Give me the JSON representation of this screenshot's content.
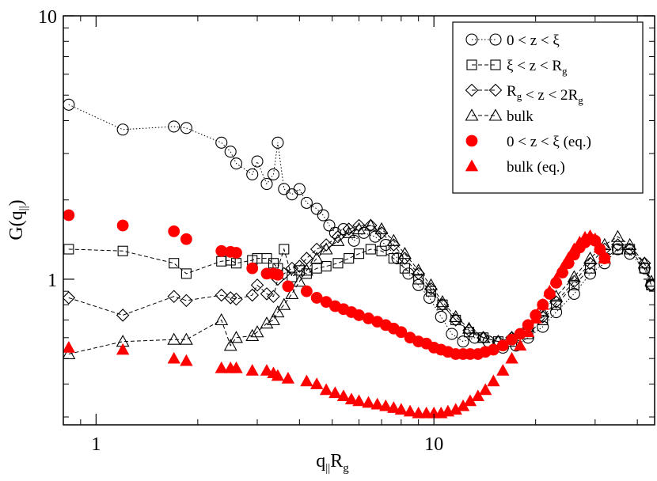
{
  "chart_data": {
    "type": "scatter",
    "xscale": "log",
    "yscale": "log",
    "xlim": [
      0.8,
      45
    ],
    "ylim": [
      0.28,
      10
    ],
    "x_ticks": [
      1,
      10
    ],
    "y_ticks": [
      1,
      10
    ],
    "legend_position": "top-right",
    "grid": false,
    "colors": {
      "black": "#000000",
      "red": "#ff0000"
    },
    "series": [
      {
        "name": "0 < z < ξ",
        "marker": "circle-open",
        "line": "dotted",
        "color": "#000000",
        "x": [
          0.83,
          1.2,
          1.7,
          1.85,
          2.35,
          2.5,
          2.6,
          2.9,
          3.0,
          3.2,
          3.35,
          3.45,
          3.6,
          3.8,
          4.0,
          4.2,
          4.5,
          4.7,
          4.9,
          5.1,
          5.4,
          5.8,
          6.2,
          6.7,
          7.2,
          7.8,
          8.4,
          9.0,
          9.7,
          10.5,
          11.3,
          12.2,
          13.2,
          14.5,
          16,
          17.5,
          19,
          21,
          23,
          26,
          29,
          32,
          35,
          38,
          42,
          44
        ],
        "y": [
          4.6,
          3.7,
          3.8,
          3.75,
          3.3,
          3.05,
          2.75,
          2.5,
          2.8,
          2.3,
          2.5,
          3.3,
          2.2,
          2.1,
          2.2,
          1.95,
          1.85,
          1.75,
          1.6,
          1.5,
          1.55,
          1.4,
          1.5,
          1.45,
          1.35,
          1.2,
          1.05,
          0.95,
          0.85,
          0.72,
          0.62,
          0.58,
          0.6,
          0.58,
          0.55,
          0.56,
          0.6,
          0.66,
          0.75,
          0.88,
          1.05,
          1.15,
          1.3,
          1.25,
          1.1,
          0.95
        ]
      },
      {
        "name": "ξ < z < R_g",
        "marker": "square-open",
        "line": "dashed",
        "color": "#000000",
        "x": [
          0.83,
          1.2,
          1.7,
          1.85,
          2.35,
          2.5,
          2.6,
          2.9,
          3.0,
          3.2,
          3.35,
          3.45,
          3.6,
          3.8,
          4.0,
          4.2,
          4.5,
          4.8,
          5.2,
          5.6,
          6.0,
          6.5,
          7.0,
          7.6,
          8.2,
          9.0,
          9.8,
          10.6,
          11.6,
          12.7,
          14,
          15.5,
          17,
          19,
          21,
          23,
          26,
          29,
          32,
          35,
          38,
          42,
          44
        ],
        "y": [
          1.3,
          1.28,
          1.15,
          1.05,
          1.17,
          1.18,
          1.15,
          1.18,
          1.2,
          1.2,
          1.15,
          1.1,
          1.3,
          1.02,
          1.08,
          1.05,
          1.1,
          1.12,
          1.15,
          1.2,
          1.25,
          1.3,
          1.28,
          1.2,
          1.1,
          1.0,
          0.9,
          0.8,
          0.7,
          0.63,
          0.6,
          0.58,
          0.58,
          0.62,
          0.7,
          0.8,
          0.95,
          1.1,
          1.2,
          1.3,
          1.3,
          1.1,
          0.95
        ]
      },
      {
        "name": "R_g < z < 2R_g",
        "marker": "diamond-open",
        "line": "dashed",
        "color": "#000000",
        "x": [
          0.83,
          1.2,
          1.7,
          1.85,
          2.35,
          2.5,
          2.6,
          2.9,
          3.0,
          3.2,
          3.35,
          3.45,
          3.6,
          3.8,
          4.0,
          4.2,
          4.5,
          4.8,
          5.2,
          5.6,
          6.0,
          6.5,
          7.0,
          7.6,
          8.2,
          9.0,
          9.8,
          10.6,
          11.6,
          12.7,
          14,
          15.5,
          17,
          19,
          21,
          23,
          26,
          29,
          32,
          35,
          38,
          42,
          44
        ],
        "y": [
          0.85,
          0.73,
          0.86,
          0.83,
          0.87,
          0.85,
          0.84,
          0.87,
          0.95,
          0.88,
          0.86,
          1.0,
          1.05,
          1.1,
          1.12,
          1.2,
          1.3,
          1.35,
          1.45,
          1.55,
          1.6,
          1.6,
          1.5,
          1.35,
          1.2,
          1.05,
          0.92,
          0.8,
          0.7,
          0.64,
          0.6,
          0.58,
          0.6,
          0.65,
          0.72,
          0.82,
          0.98,
          1.15,
          1.3,
          1.35,
          1.3,
          1.15,
          0.95
        ]
      },
      {
        "name": "bulk",
        "marker": "triangle-open",
        "line": "dashed",
        "color": "#000000",
        "x": [
          0.83,
          1.2,
          1.7,
          1.85,
          2.35,
          2.5,
          2.6,
          2.9,
          3.0,
          3.2,
          3.35,
          3.45,
          3.6,
          3.8,
          4.0,
          4.2,
          4.5,
          4.8,
          5.2,
          5.6,
          6.0,
          6.5,
          7.0,
          7.6,
          8.2,
          9.0,
          9.8,
          10.6,
          11.6,
          12.7,
          14,
          15.5,
          17,
          19,
          21,
          23,
          26,
          29,
          32,
          35,
          38,
          42,
          44
        ],
        "y": [
          0.52,
          0.58,
          0.59,
          0.59,
          0.7,
          0.56,
          0.6,
          0.61,
          0.63,
          0.68,
          0.7,
          0.75,
          0.8,
          0.88,
          0.98,
          1.08,
          1.2,
          1.3,
          1.4,
          1.5,
          1.55,
          1.6,
          1.55,
          1.4,
          1.25,
          1.08,
          0.95,
          0.82,
          0.72,
          0.65,
          0.6,
          0.58,
          0.6,
          0.66,
          0.75,
          0.86,
          1.02,
          1.2,
          1.35,
          1.45,
          1.35,
          1.15,
          0.98
        ]
      },
      {
        "name": "0 < z < ξ (eq.)",
        "marker": "circle-filled",
        "line": "none",
        "color": "#ff0000",
        "x": [
          0.83,
          1.2,
          1.7,
          1.85,
          2.35,
          2.5,
          2.6,
          2.9,
          3.2,
          3.35,
          3.45,
          3.7,
          4.2,
          4.5,
          4.8,
          5.1,
          5.4,
          5.7,
          6.0,
          6.4,
          6.8,
          7.2,
          7.6,
          8.0,
          8.5,
          9.0,
          9.5,
          10.0,
          10.5,
          11.0,
          11.6,
          12.2,
          12.8,
          13.5,
          14.2,
          15,
          16,
          17,
          18,
          19,
          20,
          21,
          22,
          23,
          24,
          25,
          26,
          27,
          28,
          29,
          30,
          31,
          32
        ],
        "y": [
          1.75,
          1.6,
          1.52,
          1.42,
          1.28,
          1.27,
          1.26,
          1.1,
          1.05,
          1.05,
          1.04,
          0.94,
          0.9,
          0.85,
          0.82,
          0.79,
          0.77,
          0.75,
          0.73,
          0.71,
          0.69,
          0.67,
          0.65,
          0.63,
          0.6,
          0.58,
          0.57,
          0.55,
          0.54,
          0.53,
          0.52,
          0.52,
          0.52,
          0.52,
          0.53,
          0.54,
          0.56,
          0.59,
          0.62,
          0.67,
          0.73,
          0.8,
          0.88,
          0.97,
          1.06,
          1.15,
          1.24,
          1.32,
          1.38,
          1.42,
          1.4,
          1.3,
          1.2
        ]
      },
      {
        "name": "bulk (eq.)",
        "marker": "triangle-filled",
        "line": "none",
        "color": "#ff0000",
        "x": [
          0.83,
          1.2,
          1.7,
          1.85,
          2.35,
          2.5,
          2.6,
          2.9,
          3.2,
          3.35,
          3.45,
          3.7,
          4.2,
          4.5,
          4.8,
          5.1,
          5.4,
          5.7,
          6.0,
          6.4,
          6.8,
          7.2,
          7.6,
          8.0,
          8.5,
          9.0,
          9.5,
          10.0,
          10.5,
          11.0,
          11.6,
          12.2,
          12.8,
          13.5,
          14.2,
          15,
          16,
          17,
          18,
          19,
          20,
          21,
          22,
          23,
          24,
          25,
          26,
          27,
          28,
          29,
          30,
          31,
          32
        ],
        "y": [
          0.55,
          0.54,
          0.5,
          0.49,
          0.46,
          0.46,
          0.46,
          0.45,
          0.45,
          0.44,
          0.43,
          0.42,
          0.41,
          0.4,
          0.38,
          0.37,
          0.36,
          0.35,
          0.345,
          0.34,
          0.335,
          0.33,
          0.325,
          0.32,
          0.315,
          0.31,
          0.31,
          0.31,
          0.31,
          0.315,
          0.32,
          0.33,
          0.345,
          0.36,
          0.38,
          0.41,
          0.45,
          0.5,
          0.56,
          0.63,
          0.71,
          0.8,
          0.9,
          1.0,
          1.1,
          1.2,
          1.3,
          1.38,
          1.44,
          1.46,
          1.42,
          1.32,
          1.2
        ]
      }
    ]
  }
}
